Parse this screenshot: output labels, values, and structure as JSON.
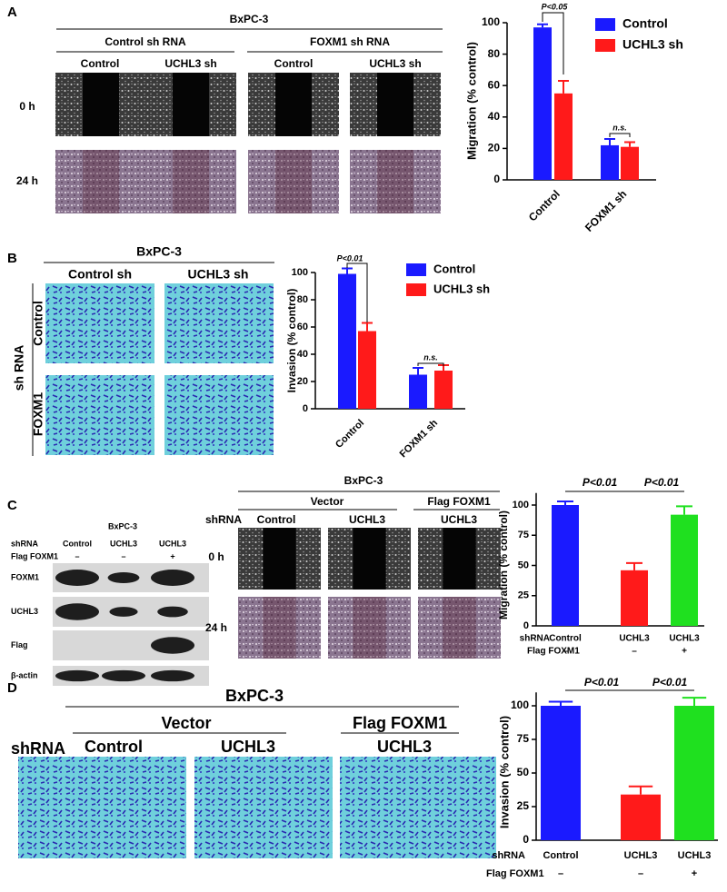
{
  "chart_data": [
    {
      "type": "bar",
      "y_label": "Migration (% control)",
      "categories": [
        "Control",
        "FOXM1 sh"
      ],
      "series": [
        {
          "name": "Control",
          "color": "#1a1aff",
          "values": [
            97,
            22
          ],
          "errors": [
            2,
            4
          ]
        },
        {
          "name": "UCHL3 sh",
          "color": "#ff1a1a",
          "values": [
            55,
            21
          ],
          "errors": [
            8,
            3
          ]
        }
      ],
      "ylim": [
        0,
        100
      ],
      "yticks": [
        0,
        20,
        40,
        60,
        80,
        100
      ],
      "annotations": [
        "P<0.05",
        "n.s."
      ]
    },
    {
      "type": "bar",
      "y_label": "Invasion (% control)",
      "categories": [
        "Control",
        "FOXM1 sh"
      ],
      "series": [
        {
          "name": "Control",
          "color": "#1a1aff",
          "values": [
            99,
            25
          ],
          "errors": [
            4,
            5
          ]
        },
        {
          "name": "UCHL3 sh",
          "color": "#ff1a1a",
          "values": [
            57,
            28
          ],
          "errors": [
            6,
            4
          ]
        }
      ],
      "ylim": [
        0,
        100
      ],
      "yticks": [
        0,
        20,
        40,
        60,
        80,
        100
      ],
      "annotations": [
        "P<0.01",
        "n.s."
      ]
    },
    {
      "type": "bar",
      "y_label": "Migration (% control)",
      "categories": [
        "Control",
        "UCHL3",
        "UCHL3"
      ],
      "values": [
        100,
        46,
        92
      ],
      "errors": [
        3,
        6,
        7
      ],
      "colors": [
        "#1a1aff",
        "#ff1a1a",
        "#1fe01f"
      ],
      "row_labels": [
        "shRNA",
        "Flag FOXM1"
      ],
      "flag_foxm1": [
        "–",
        "–",
        "+"
      ],
      "ylim": [
        0,
        110
      ],
      "yticks": [
        0,
        25,
        50,
        75,
        100
      ],
      "annotations": [
        "P<0.01",
        "P<0.01"
      ]
    },
    {
      "type": "bar",
      "y_label": "Invasion (% control)",
      "categories": [
        "Control",
        "UCHL3",
        "UCHL3"
      ],
      "values": [
        100,
        34,
        100
      ],
      "errors": [
        3,
        6,
        6
      ],
      "colors": [
        "#1a1aff",
        "#ff1a1a",
        "#1fe01f"
      ],
      "row_labels": [
        "shRNA",
        "Flag FOXM1"
      ],
      "flag_foxm1": [
        "–",
        "–",
        "+"
      ],
      "ylim": [
        0,
        110
      ],
      "yticks": [
        0,
        25,
        50,
        75,
        100
      ],
      "annotations": [
        "P<0.01",
        "P<0.01"
      ]
    }
  ],
  "figure": {
    "A": {
      "label": "A",
      "cell_line": "BxPC-3",
      "groups": [
        "Control sh RNA",
        "FOXM1 sh RNA"
      ],
      "columns": [
        "Control",
        "UCHL3 sh",
        "Control",
        "UCHL3 sh"
      ],
      "rows": [
        "0 h",
        "24 h"
      ]
    },
    "B": {
      "label": "B",
      "cell_line": "BxPC-3",
      "columns": [
        "Control sh",
        "UCHL3 sh"
      ],
      "side": "sh RNA",
      "rows": [
        "Control",
        "FOXM1"
      ]
    },
    "C": {
      "label": "C",
      "blot": {
        "cell_line": "BxPC-3",
        "row_labels": [
          "shRNA",
          "Flag FOXM1"
        ],
        "lanes": [
          "Control",
          "UCHL3",
          "UCHL3"
        ],
        "flag": [
          "–",
          "–",
          "+"
        ],
        "bands": [
          "FOXM1",
          "UCHL3",
          "Flag",
          "β-actin"
        ]
      },
      "wound": {
        "cell_line": "BxPC-3",
        "groups": [
          "Vector",
          "Flag FOXM1"
        ],
        "row_label": "shRNA",
        "columns": [
          "Control",
          "UCHL3",
          "UCHL3"
        ],
        "rows": [
          "0 h",
          "24 h"
        ]
      }
    },
    "D": {
      "label": "D",
      "cell_line": "BxPC-3",
      "groups": [
        "Vector",
        "Flag FOXM1"
      ],
      "row_label": "shRNA",
      "columns": [
        "Control",
        "UCHL3",
        "UCHL3"
      ]
    }
  }
}
